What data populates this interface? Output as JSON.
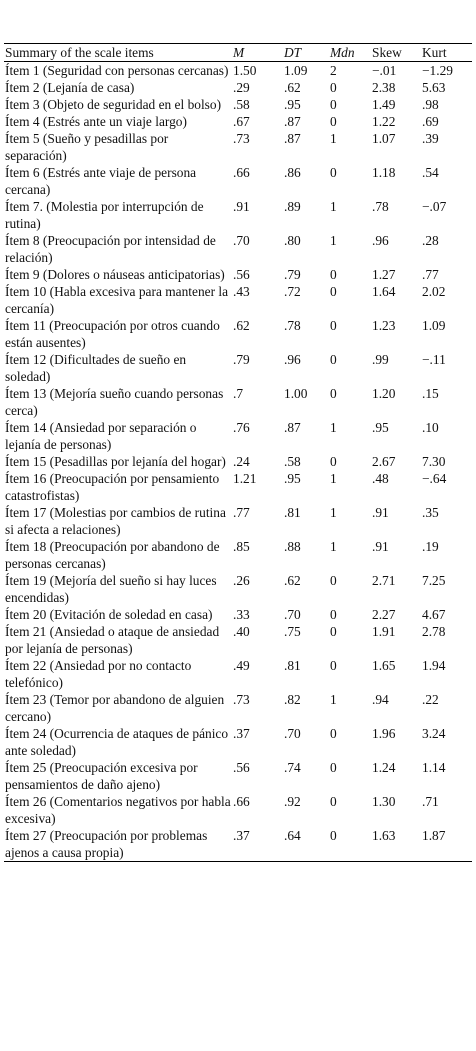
{
  "table": {
    "header": [
      "Summary of the scale items",
      "M",
      "DT",
      "Mdn",
      "Skew",
      "Kurt"
    ],
    "rows": [
      [
        "Ítem 1 (Seguridad con personas cercanas)",
        "1.50",
        "1.09",
        "2",
        "−.01",
        "−1.29"
      ],
      [
        "Ítem 2 (Lejanía de casa)",
        ".29",
        ".62",
        "0",
        "2.38",
        "5.63"
      ],
      [
        "Ítem 3 (Objeto de seguridad en el bolso)",
        ".58",
        ".95",
        "0",
        "1.49",
        ".98"
      ],
      [
        "Ítem 4 (Estrés ante un viaje largo)",
        ".67",
        ".87",
        "0",
        "1.22",
        ".69"
      ],
      [
        "Ítem 5 (Sueño y pesadillas por separación)",
        ".73",
        ".87",
        "1",
        "1.07",
        ".39"
      ],
      [
        "Ítem 6 (Estrés ante viaje de persona cercana)",
        ".66",
        ".86",
        "0",
        "1.18",
        ".54"
      ],
      [
        "Ítem 7. (Molestia por interrupción de rutina)",
        ".91",
        ".89",
        "1",
        ".78",
        "−.07"
      ],
      [
        "Ítem 8 (Preocupación por intensidad de relación)",
        ".70",
        ".80",
        "1",
        ".96",
        ".28"
      ],
      [
        "Ítem 9 (Dolores o náuseas anticipatorias)",
        ".56",
        ".79",
        "0",
        "1.27",
        ".77"
      ],
      [
        "Ítem 10 (Habla excesiva para mantener la cercanía)",
        ".43",
        ".72",
        "0",
        "1.64",
        "2.02"
      ],
      [
        "Ítem 11 (Preocupación por otros cuando están ausentes)",
        ".62",
        ".78",
        "0",
        "1.23",
        "1.09"
      ],
      [
        "Ítem 12 (Dificultades de sueño en soledad)",
        ".79",
        ".96",
        "0",
        ".99",
        "−.11"
      ],
      [
        "Ítem 13 (Mejoría sueño cuando personas cerca)",
        ".7",
        "1.00",
        "0",
        "1.20",
        ".15"
      ],
      [
        "Ítem 14 (Ansiedad por separación o lejanía de personas)",
        ".76",
        ".87",
        "1",
        ".95",
        ".10"
      ],
      [
        "Ítem 15 (Pesadillas por lejanía del hogar)",
        ".24",
        ".58",
        "0",
        "2.67",
        "7.30"
      ],
      [
        "Ítem 16 (Preocupación por pensamiento catastrofistas)",
        "1.21",
        ".95",
        "1",
        ".48",
        "−.64"
      ],
      [
        "Ítem 17 (Molestias por cambios de rutina si afecta a relaciones)",
        ".77",
        ".81",
        "1",
        ".91",
        ".35"
      ],
      [
        "Ítem 18 (Preocupación por abandono de personas cercanas)",
        ".85",
        ".88",
        "1",
        ".91",
        ".19"
      ],
      [
        "Ítem 19 (Mejoría del sueño si hay luces encendidas)",
        ".26",
        ".62",
        "0",
        "2.71",
        "7.25"
      ],
      [
        "Ítem 20 (Evitación de soledad en casa)",
        ".33",
        ".70",
        "0",
        "2.27",
        "4.67"
      ],
      [
        "Ítem 21 (Ansiedad o ataque de ansiedad por lejanía de personas)",
        ".40",
        ".75",
        "0",
        "1.91",
        "2.78"
      ],
      [
        "Ítem 22 (Ansiedad por no contacto telefónico)",
        ".49",
        ".81",
        "0",
        "1.65",
        "1.94"
      ],
      [
        "Ítem 23 (Temor por abandono de alguien cercano)",
        ".73",
        ".82",
        "1",
        ".94",
        ".22"
      ],
      [
        "Ítem 24 (Ocurrencia de ataques de pánico ante soledad)",
        ".37",
        ".70",
        "0",
        "1.96",
        "3.24"
      ],
      [
        "Ítem 25 (Preocupación excesiva por pensamientos de daño ajeno)",
        ".56",
        ".74",
        "0",
        "1.24",
        "1.14"
      ],
      [
        "Ítem 26 (Comentarios negativos por habla excesiva)",
        ".66",
        ".92",
        "0",
        "1.30",
        ".71"
      ],
      [
        "Ítem 27 (Preocupación por problemas ajenos a causa propia)",
        ".37",
        ".64",
        "0",
        "1.63",
        "1.87"
      ]
    ]
  }
}
